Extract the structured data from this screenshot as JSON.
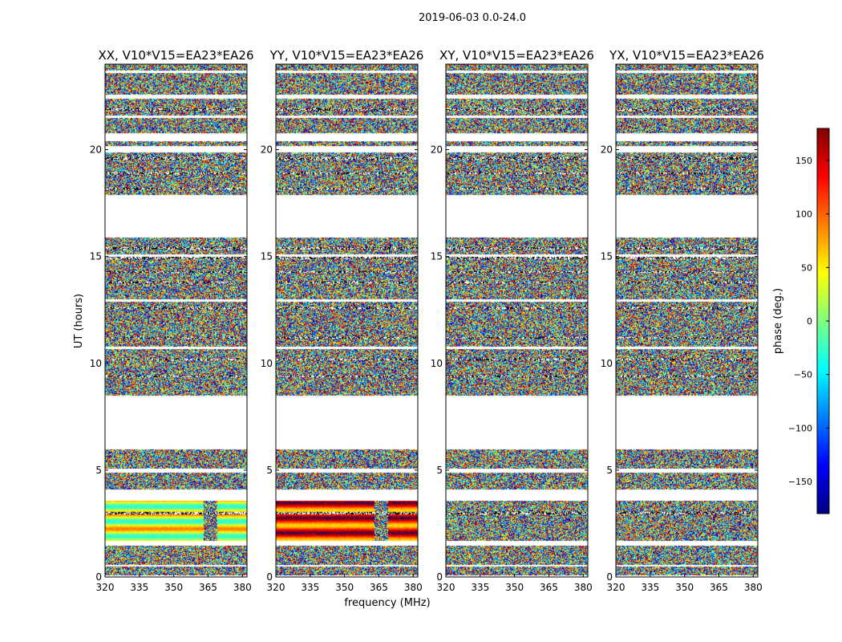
{
  "chart_data": {
    "type": "heatmap",
    "title": "2019-06-03 0.0-24.0",
    "xlabel": "frequency (MHz)",
    "ylabel": "UT (hours)",
    "xlim": [
      320,
      382
    ],
    "ylim": [
      0,
      24
    ],
    "xticks": [
      320,
      335,
      350,
      365,
      380
    ],
    "yticks": [
      0,
      5,
      10,
      15,
      20
    ],
    "colorbar": {
      "label": "phase (deg.)",
      "range": [
        -180,
        180
      ],
      "ticks": [
        -150,
        -100,
        -50,
        0,
        50,
        100,
        150
      ],
      "tick_labels": [
        "−150",
        "−100",
        "−50",
        "0",
        "50",
        "100",
        "150"
      ],
      "colormap": [
        "#00007f",
        "#0000ff",
        "#007fff",
        "#00ffff",
        "#7fff7f",
        "#ffff00",
        "#ff7f00",
        "#ff0000",
        "#7f0000"
      ]
    },
    "data_blocks_ut": [
      [
        0.1,
        0.5
      ],
      [
        0.6,
        1.5
      ],
      [
        1.7,
        3.6
      ],
      [
        4.1,
        4.9
      ],
      [
        5.1,
        6.0
      ],
      [
        8.5,
        10.7
      ],
      [
        10.8,
        12.9
      ],
      [
        13.0,
        15.0
      ],
      [
        15.1,
        15.9
      ],
      [
        17.9,
        19.9
      ],
      [
        20.2,
        20.4
      ],
      [
        20.8,
        21.5
      ],
      [
        21.6,
        22.4
      ],
      [
        22.6,
        23.6
      ],
      [
        23.7,
        24.0
      ]
    ],
    "gap_lines_ut": [
      0.55,
      1.55,
      1.65,
      3.0,
      4.95,
      5.05,
      9.4,
      10.2,
      11.2,
      12.6,
      13.8,
      14.3,
      14.95,
      15.4,
      18.2,
      18.9,
      19.6,
      21.9,
      22.5
    ],
    "panels": [
      {
        "name": "XX",
        "title": "XX, V10*V15=EA23*EA26",
        "phase_offset": 0.0,
        "coherent_span": [
          1.7,
          3.6
        ],
        "coherent_base": 30,
        "rfi_band_mhz": [
          363,
          369
        ]
      },
      {
        "name": "YY",
        "title": "YY, V10*V15=EA23*EA26",
        "phase_offset": 1.7,
        "coherent_span": [
          1.7,
          3.6
        ],
        "coherent_base": 120,
        "rfi_band_mhz": [
          363,
          369
        ]
      },
      {
        "name": "XY",
        "title": "XY, V10*V15=EA23*EA26",
        "phase_offset": 3.3,
        "coherent_span": [],
        "coherent_base": 0,
        "rfi_band_mhz": []
      },
      {
        "name": "YX",
        "title": "YX, V10*V15=EA23*EA26",
        "phase_offset": 4.9,
        "coherent_span": [],
        "coherent_base": 0,
        "rfi_band_mhz": []
      }
    ]
  }
}
